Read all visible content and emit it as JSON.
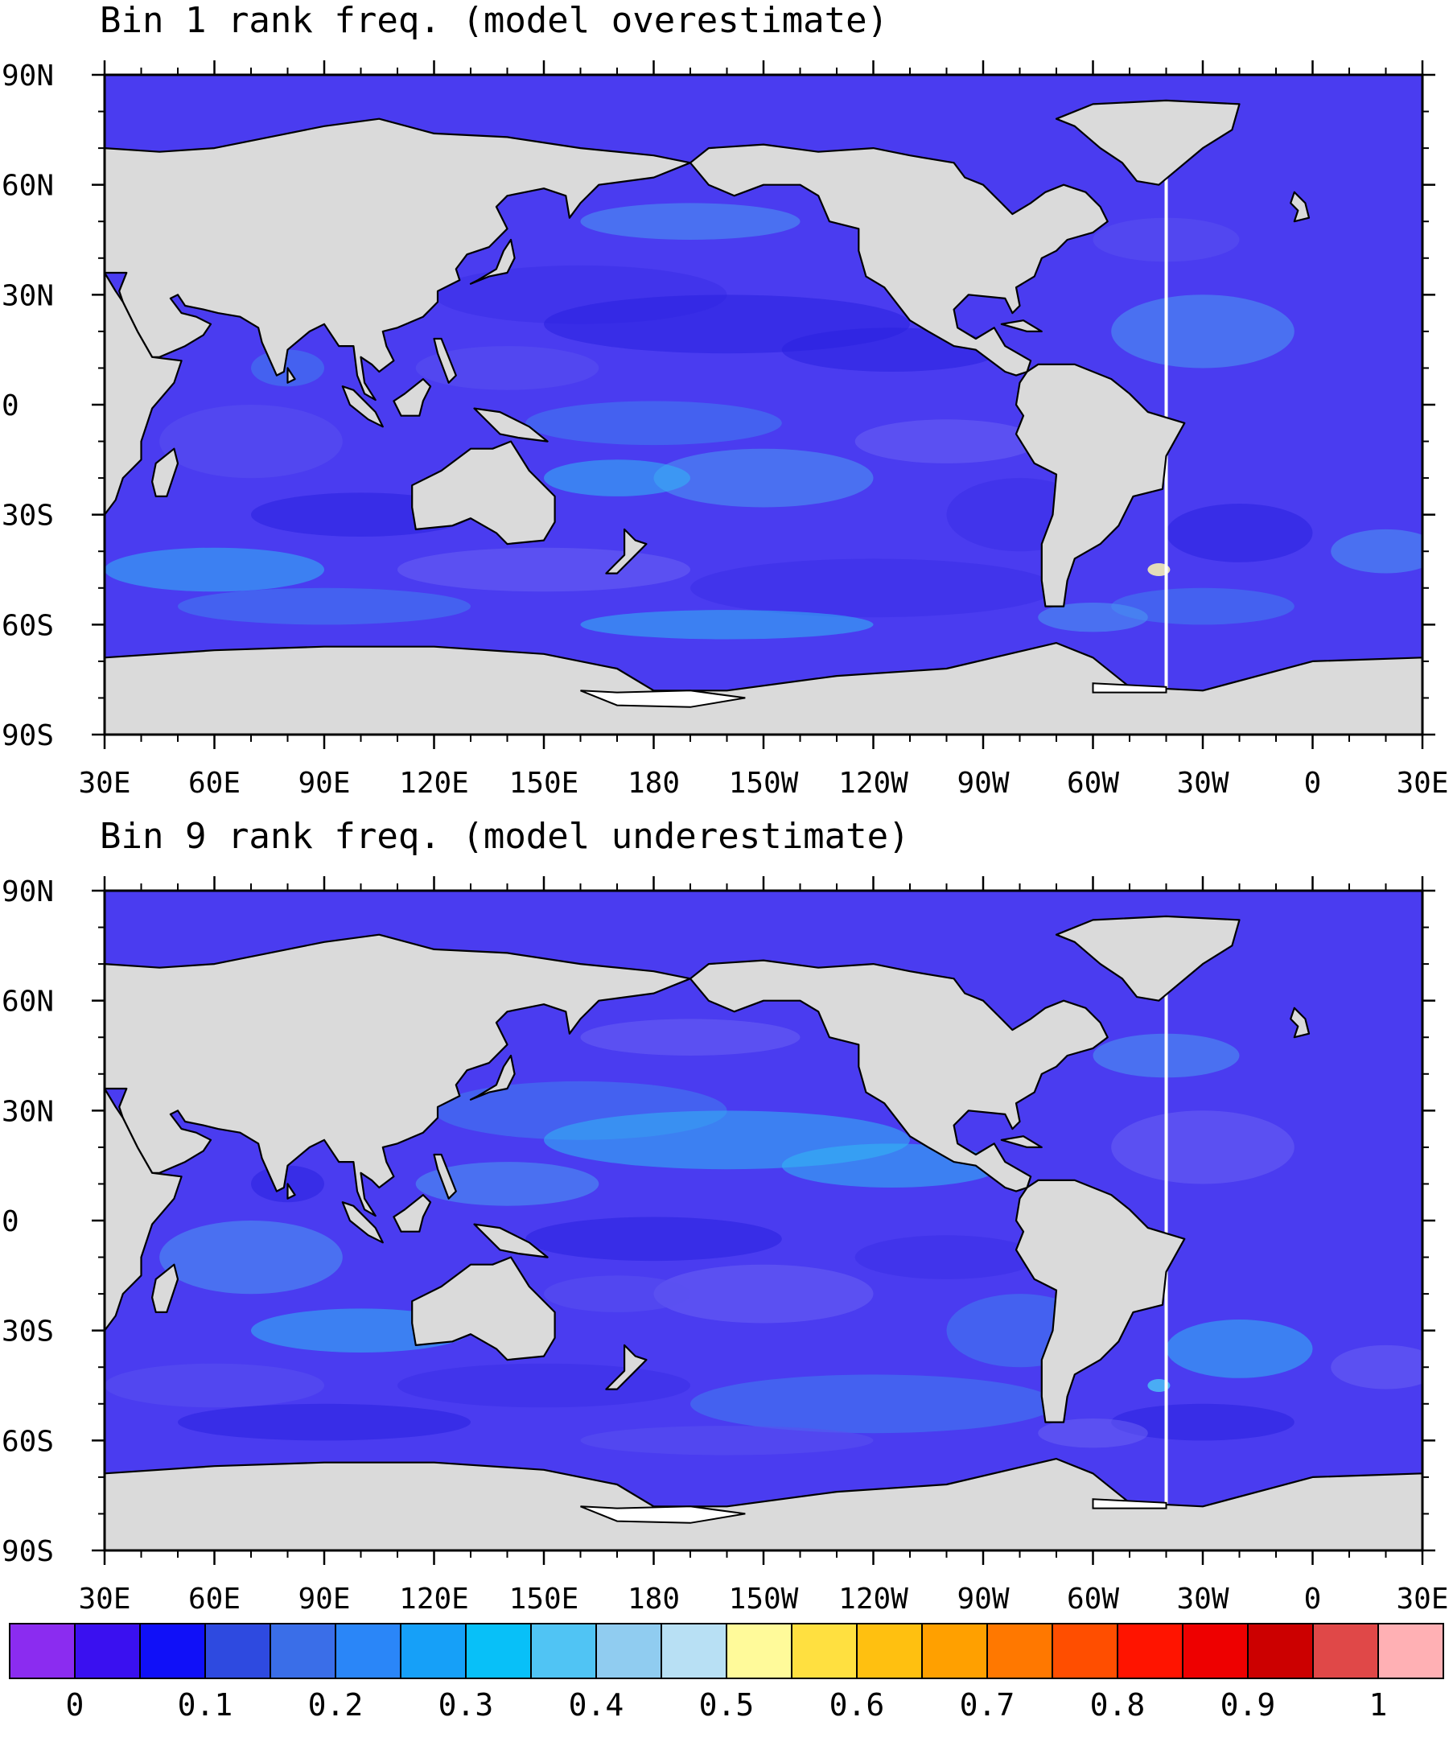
{
  "panels": [
    {
      "title": "Bin 1 rank freq. (model overestimate)",
      "base_color": "#4a3cf0",
      "patch_colors": [
        "#3a2ee8",
        "#5a50f0",
        "#3f7ff0",
        "#4a9af2",
        "#2a20e0",
        "#6a60f4",
        "#31b8f4"
      ],
      "highlight_color": "#fff8b0"
    },
    {
      "title": "Bin 9 rank freq. (model underestimate)",
      "base_color": "#4a3cf0",
      "patch_colors": [
        "#3a2ee8",
        "#5a50f0",
        "#3f7ff0",
        "#4a9af2",
        "#2a20e0",
        "#6a60f4",
        "#31b8f4"
      ],
      "highlight_color": "#4ac0f4"
    }
  ],
  "axes": {
    "lat_labels": [
      "90N",
      "60N",
      "30N",
      "0",
      "30S",
      "60S",
      "90S"
    ],
    "lon_labels": [
      "30E",
      "60E",
      "90E",
      "120E",
      "150E",
      "180",
      "150W",
      "120W",
      "90W",
      "60W",
      "30W",
      "0",
      "30E"
    ],
    "lat_range": [
      -90,
      90
    ],
    "lon_range": [
      30,
      390
    ]
  },
  "colorbar": {
    "colors": [
      "#8b2cf0",
      "#3a10f0",
      "#1010f8",
      "#2e4ae0",
      "#3a6ee8",
      "#2a86f8",
      "#16a0f8",
      "#08c0f8",
      "#50c4f4",
      "#90ccf0",
      "#b8e0f4",
      "#fffa9a",
      "#ffe040",
      "#ffc010",
      "#ffa000",
      "#ff7800",
      "#ff4e00",
      "#ff1400",
      "#ee0000",
      "#cc0000",
      "#e04848",
      "#ffb0b4"
    ],
    "labels": [
      "0",
      "0.1",
      "0.2",
      "0.3",
      "0.4",
      "0.5",
      "0.6",
      "0.7",
      "0.8",
      "0.9",
      "1"
    ]
  },
  "land_color": "#dadada",
  "ice_color": "#ffffff"
}
